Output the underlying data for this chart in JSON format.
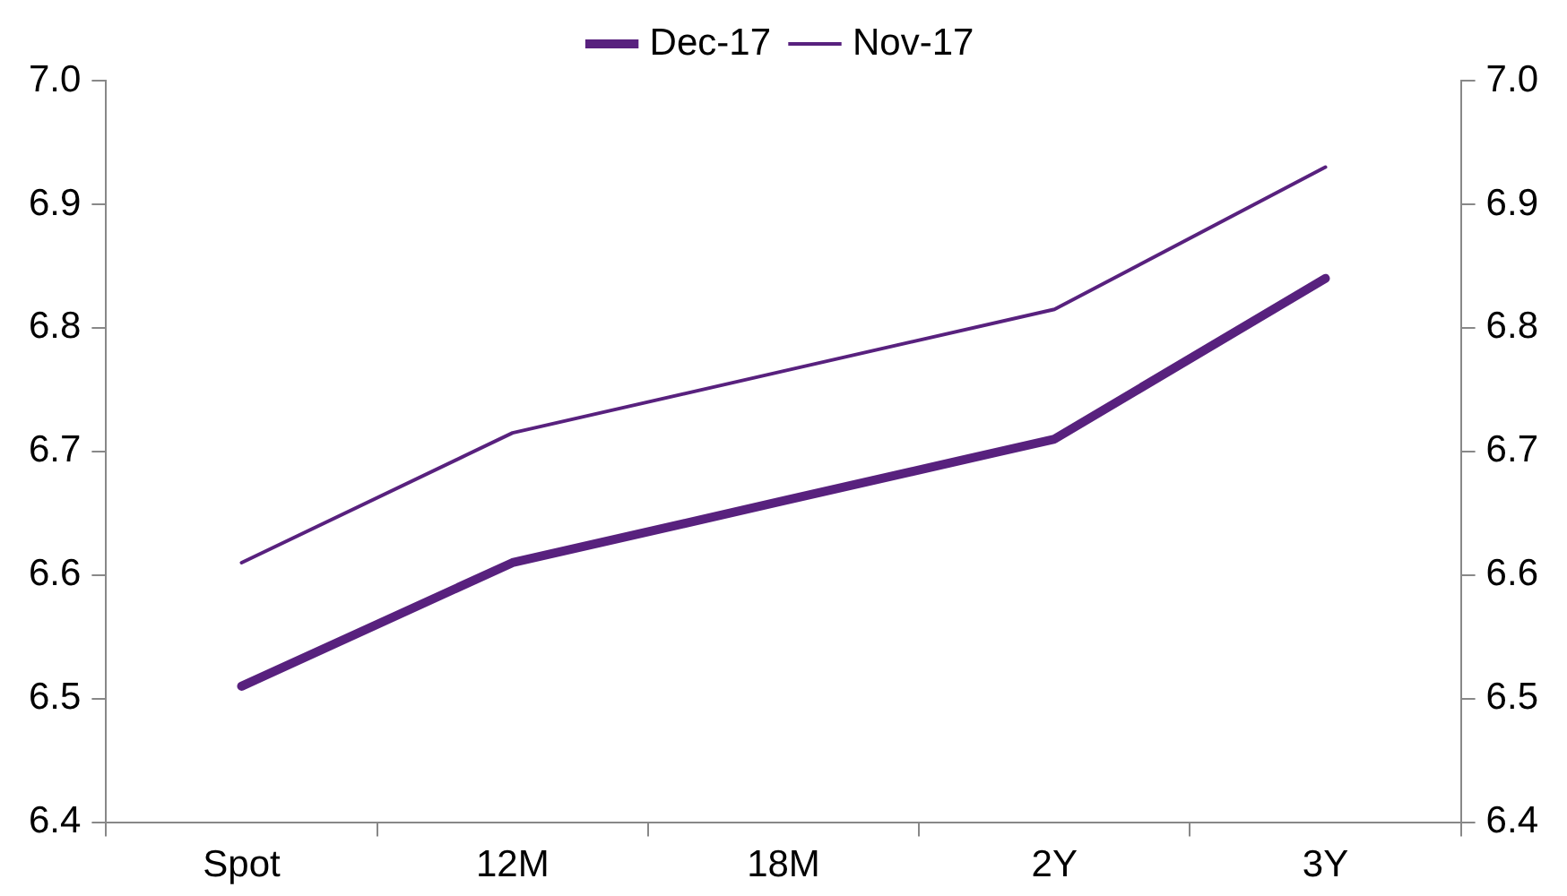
{
  "chart_data": {
    "type": "line",
    "categories": [
      "Spot",
      "12M",
      "18M",
      "2Y",
      "3Y"
    ],
    "series": [
      {
        "name": "Dec-17",
        "color": "#58217e",
        "values": [
          6.51,
          6.61,
          6.66,
          6.71,
          6.84
        ]
      },
      {
        "name": "Nov-17",
        "color": "#58217e",
        "values": [
          6.61,
          6.715,
          6.765,
          6.815,
          6.93
        ]
      }
    ],
    "ylim": [
      6.4,
      7.0
    ],
    "yticks": [
      {
        "value": 6.4,
        "label": "6.4"
      },
      {
        "value": 6.5,
        "label": "6.5"
      },
      {
        "value": 6.6,
        "label": "6.6"
      },
      {
        "value": 6.7,
        "label": "6.7"
      },
      {
        "value": 6.8,
        "label": "6.8"
      },
      {
        "value": 6.9,
        "label": "6.9"
      },
      {
        "value": 7.0,
        "label": "7.0"
      }
    ],
    "y2lim": [
      6.4,
      7.0
    ],
    "y2ticks": [
      {
        "value": 6.4,
        "label": "6.4"
      },
      {
        "value": 6.5,
        "label": "6.5"
      },
      {
        "value": 6.6,
        "label": "6.6"
      },
      {
        "value": 6.7,
        "label": "6.7"
      },
      {
        "value": 6.8,
        "label": "6.8"
      },
      {
        "value": 6.9,
        "label": "6.9"
      },
      {
        "value": 7.0,
        "label": "7.0"
      }
    ],
    "grid": false,
    "legend": "top",
    "marker": "none",
    "line_style": "solid"
  }
}
